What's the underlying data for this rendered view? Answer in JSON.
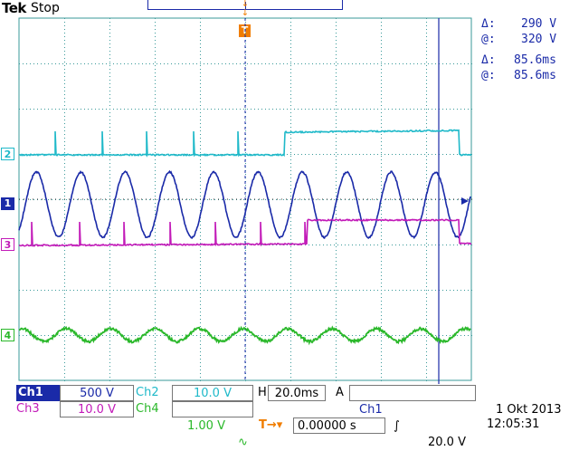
{
  "header": {
    "brand": "Tek",
    "status": "Stop"
  },
  "measurements": {
    "voltage_delta": "290 V",
    "voltage_at": "320 V",
    "time_delta": "85.6ms",
    "time_at": "85.6ms",
    "delta_symbol": "Δ:",
    "at_symbol": "@:"
  },
  "channel_markers": {
    "ch2": "2",
    "ch1": "1",
    "ch3": "3",
    "ch4": "4",
    "trigger": "T"
  },
  "channels": [
    {
      "id": "Ch1",
      "scale": "500 V",
      "suffix": "",
      "color": "#1a2aa8"
    },
    {
      "id": "Ch2",
      "scale": "10.0 V",
      "suffix": "",
      "color": "#1fb9c9"
    },
    {
      "id": "Ch3",
      "scale": "10.0 V",
      "suffix": "",
      "color": "#c21ab8"
    },
    {
      "id": "Ch4",
      "scale": "1.00 V",
      "suffix": "∿",
      "color": "#2ab82a"
    }
  ],
  "timebase": {
    "prefix": "H",
    "value": "20.0ms"
  },
  "trigger": {
    "mode": "A",
    "source": "Ch1",
    "slope_symbol": "∫",
    "level": "20.0 V"
  },
  "trigger_offset": {
    "symbol": "T→▾",
    "value": "0.00000 s"
  },
  "datetime": {
    "date": "1 Okt  2013",
    "time": "12:05:31"
  },
  "colors": {
    "ch1": "#1a2aa8",
    "ch2": "#1fb9c9",
    "ch3": "#c21ab8",
    "ch4": "#2ab82a",
    "trigger": "#f07d00",
    "grid": "#3a9a9a"
  },
  "chart_data": {
    "type": "line",
    "series": [
      {
        "name": "Ch1",
        "waveform": "sine",
        "cycles": 10
      },
      {
        "name": "Ch2",
        "waveform": "pulse-train-step"
      },
      {
        "name": "Ch3",
        "waveform": "pulse-train-step"
      },
      {
        "name": "Ch4",
        "waveform": "sine",
        "cycles": 10
      }
    ],
    "grid": true,
    "divisions": {
      "x": 10,
      "y": 8
    }
  }
}
